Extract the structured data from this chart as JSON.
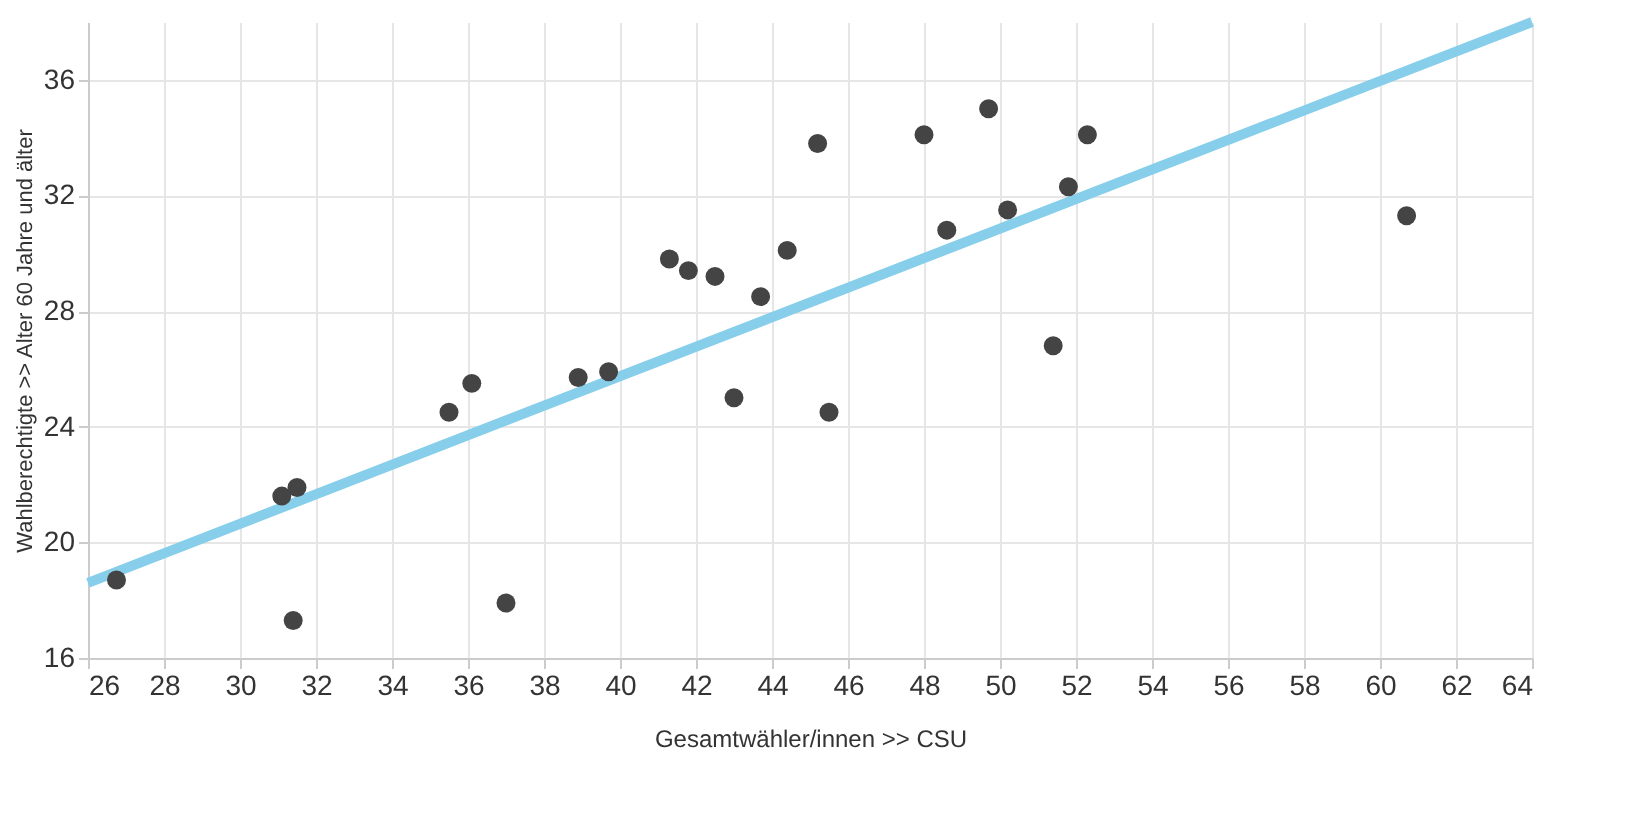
{
  "chart_data": {
    "type": "scatter",
    "xlabel": "Gesamtwähler/innen >>  CSU",
    "ylabel": "Wahlberechtigte >>  Alter 60 Jahre und älter",
    "xlim": [
      26,
      64
    ],
    "xticks": [
      26,
      28,
      30,
      32,
      34,
      36,
      38,
      40,
      42,
      44,
      46,
      48,
      50,
      52,
      54,
      56,
      58,
      60,
      62,
      64
    ],
    "ylim": [
      16,
      38
    ],
    "yticks": [
      16,
      20,
      24,
      28,
      32,
      36
    ],
    "grid": true,
    "series": [
      {
        "type": "scatter",
        "marker": "circle",
        "color": "#444444",
        "x": [
          26.75,
          31.1,
          31.5,
          31.4,
          35.5,
          36.1,
          37.0,
          38.9,
          39.7,
          41.3,
          41.8,
          42.5,
          43.0,
          43.7,
          44.4,
          45.2,
          45.5,
          48.0,
          48.6,
          49.7,
          50.2,
          51.4,
          51.8,
          52.3,
          60.7
        ],
        "values": [
          18.7,
          21.6,
          21.9,
          17.3,
          24.5,
          25.5,
          17.9,
          25.7,
          25.9,
          29.8,
          29.4,
          29.2,
          25.0,
          28.5,
          30.1,
          33.8,
          24.5,
          34.1,
          30.8,
          35.0,
          31.5,
          26.8,
          32.3,
          34.1,
          31.3
        ]
      },
      {
        "type": "line",
        "color": "#87ceeb",
        "x": [
          26,
          64
        ],
        "values": [
          18.6,
          38
        ]
      }
    ]
  }
}
